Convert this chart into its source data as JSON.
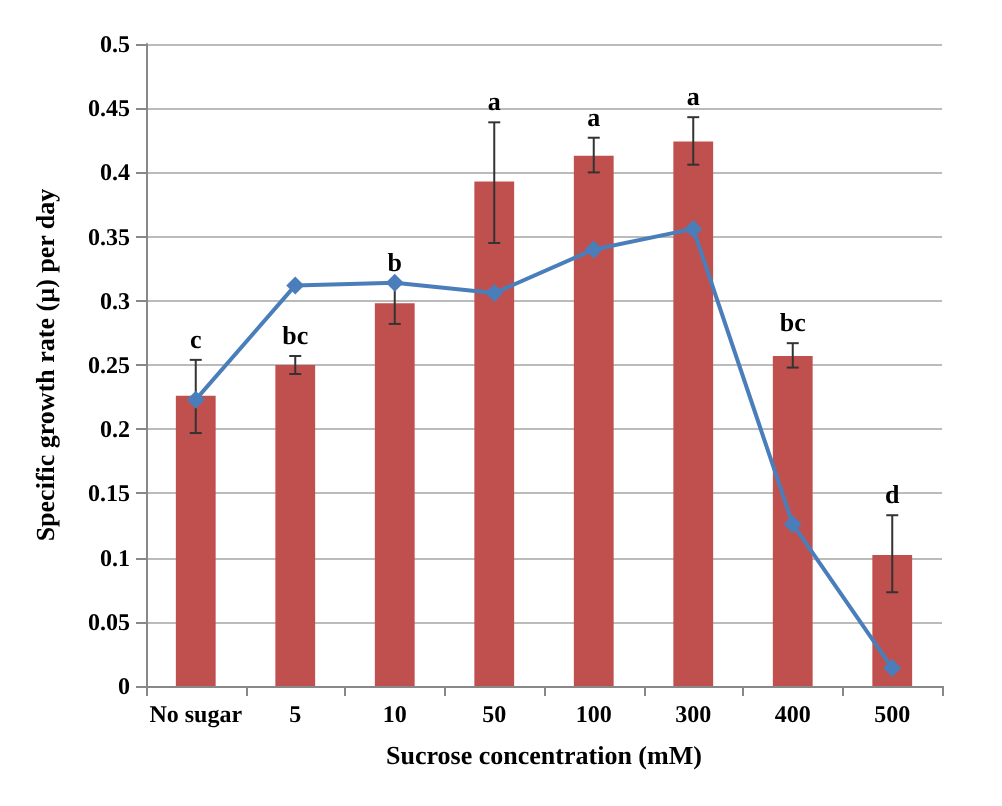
{
  "chart_data": {
    "type": "bar",
    "xlabel": "Sucrose concentration (mM)",
    "ylabel": "Specific growth rate (µ) per day",
    "categories": [
      "No sugar",
      "5",
      "10",
      "50",
      "100",
      "300",
      "400",
      "500"
    ],
    "series": [
      {
        "color": "#c0504d",
        "values": [
          0.226,
          0.25,
          0.298,
          0.393,
          0.413,
          0.424,
          0.257,
          0.102
        ],
        "errors": [
          [
            0.197,
            0.254
          ],
          [
            0.243,
            0.257
          ],
          [
            0.282,
            0.314
          ],
          [
            0.345,
            0.439
          ],
          [
            0.4,
            0.427
          ],
          [
            0.406,
            0.443
          ],
          [
            0.248,
            0.267
          ],
          [
            0.073,
            0.133
          ]
        ]
      },
      {
        "type": "line",
        "color": "#4a7ebb",
        "values": [
          0.223,
          0.312,
          0.314,
          0.306,
          0.34,
          0.356,
          0.126,
          0.014
        ],
        "marker": "diamond",
        "line_style": "solid"
      }
    ],
    "annotations": [
      {
        "text": "c",
        "x": "No sugar",
        "y": 0.254
      },
      {
        "text": "bc",
        "x": "5",
        "y": 0.257
      },
      {
        "text": "b",
        "x": "10",
        "y": 0.314
      },
      {
        "text": "a",
        "x": "50",
        "y": 0.439
      },
      {
        "text": "a",
        "x": "100",
        "y": 0.427
      },
      {
        "text": "a",
        "x": "300",
        "y": 0.443
      },
      {
        "text": "bc",
        "x": "400",
        "y": 0.267
      },
      {
        "text": "d",
        "x": "500",
        "y": 0.133
      }
    ],
    "ylim": [
      0,
      0.5
    ],
    "yticks": [
      0,
      0.05,
      0.1,
      0.15,
      0.2,
      0.25,
      0.3,
      0.35,
      0.4,
      0.45,
      0.5
    ],
    "grid": "y"
  }
}
